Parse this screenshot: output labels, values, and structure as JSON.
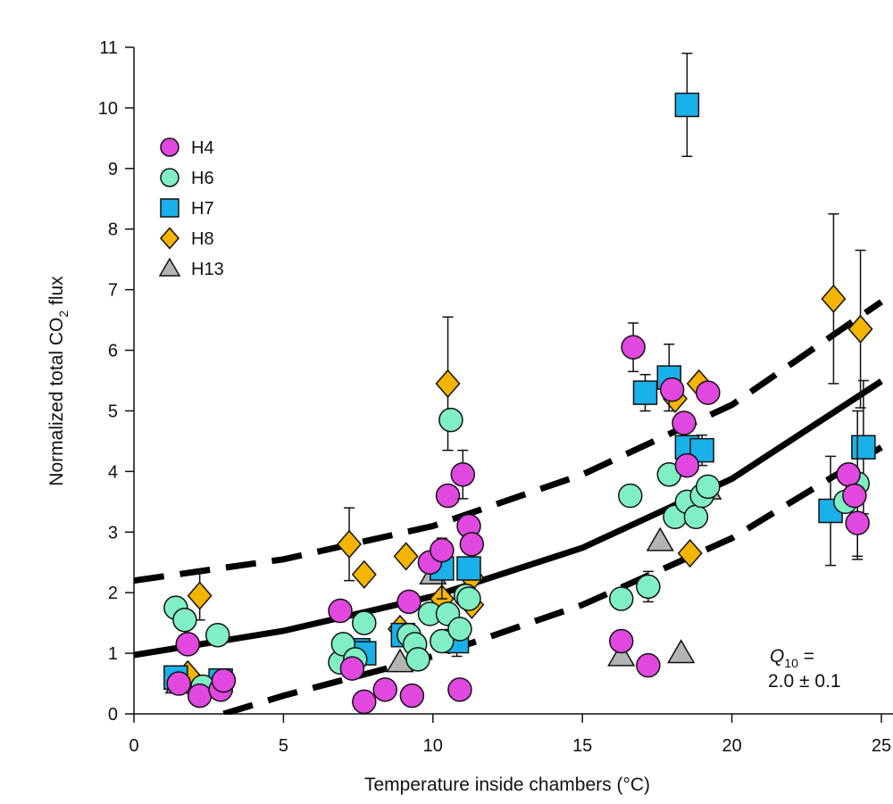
{
  "chart_data": {
    "type": "scatter",
    "x_label": "Temperature inside chambers (°C)",
    "y_label": {
      "text": "Normalized total CO",
      "sub": "2",
      "after": " flux"
    },
    "annotation": {
      "q": "Q",
      "sub": "10",
      "eq": " =",
      "value": "2.0 ± 0.1"
    },
    "xlim": [
      0,
      25
    ],
    "ylim": [
      0,
      11
    ],
    "xticks": [
      0,
      5,
      10,
      15,
      20,
      25
    ],
    "yticks": [
      0,
      1,
      2,
      3,
      4,
      5,
      6,
      7,
      8,
      9,
      10,
      11
    ],
    "legend": "top-left",
    "series": [
      {
        "name": "H4",
        "marker": "circle",
        "color": "#e048e0",
        "x": [
          1.5,
          1.8,
          2.2,
          2.9,
          3.0,
          6.9,
          7.3,
          7.7,
          8.4,
          9.2,
          9.3,
          9.9,
          10.3,
          10.5,
          10.9,
          11.0,
          11.2,
          11.3,
          16.3,
          16.7,
          17.2,
          18.0,
          18.4,
          18.5,
          19.2,
          23.9,
          24.2,
          24.1
        ],
        "values": [
          0.5,
          1.15,
          0.3,
          0.4,
          0.55,
          1.7,
          0.75,
          0.2,
          0.4,
          1.85,
          0.3,
          2.5,
          2.7,
          3.6,
          0.4,
          3.95,
          3.1,
          2.8,
          1.2,
          6.05,
          0.8,
          5.35,
          4.8,
          4.1,
          5.3,
          3.95,
          3.15,
          3.6
        ],
        "errors": [
          null,
          null,
          null,
          null,
          null,
          null,
          null,
          null,
          null,
          null,
          null,
          null,
          null,
          null,
          null,
          0.4,
          null,
          null,
          null,
          0.4,
          null,
          null,
          null,
          null,
          null,
          null,
          0.6,
          null
        ]
      },
      {
        "name": "H6",
        "marker": "circle",
        "color": "#80f0c4",
        "x": [
          1.4,
          1.7,
          2.3,
          2.8,
          6.9,
          7.0,
          7.4,
          7.7,
          9.2,
          9.4,
          9.5,
          9.9,
          10.3,
          10.5,
          10.6,
          10.9,
          11.1,
          11.2,
          16.3,
          16.6,
          17.2,
          17.9,
          18.1,
          18.5,
          18.8,
          19.0,
          19.2,
          23.8,
          24.2
        ],
        "values": [
          1.75,
          1.55,
          0.45,
          1.3,
          0.85,
          1.15,
          0.9,
          1.5,
          1.3,
          1.15,
          0.9,
          1.65,
          1.2,
          1.65,
          4.85,
          1.4,
          1.95,
          1.9,
          1.9,
          3.6,
          2.1,
          3.95,
          3.25,
          3.5,
          3.25,
          3.6,
          3.75,
          3.5,
          3.8
        ],
        "errors": [
          null,
          null,
          null,
          null,
          null,
          null,
          null,
          null,
          null,
          null,
          null,
          null,
          null,
          null,
          null,
          null,
          null,
          null,
          null,
          null,
          0.25,
          null,
          null,
          null,
          null,
          null,
          null,
          null,
          1.2
        ]
      },
      {
        "name": "H7",
        "marker": "square",
        "color": "#1ab0e8",
        "x": [
          1.4,
          2.9,
          7.5,
          7.7,
          9.0,
          10.3,
          10.8,
          11.2,
          17.1,
          17.9,
          18.5,
          18.5,
          19.0,
          23.3,
          24.4
        ],
        "values": [
          0.6,
          0.55,
          1.05,
          1.0,
          1.3,
          2.4,
          1.2,
          2.4,
          5.3,
          5.55,
          10.05,
          4.4,
          4.35,
          3.35,
          4.4
        ],
        "errors": [
          null,
          null,
          null,
          null,
          null,
          0.5,
          0.25,
          null,
          0.3,
          0.55,
          0.85,
          null,
          0.25,
          0.9,
          1.1
        ]
      },
      {
        "name": "H8",
        "marker": "diamond",
        "color": "#f5b400",
        "x": [
          2.2,
          1.8,
          7.2,
          7.7,
          9.1,
          8.9,
          10.5,
          10.3,
          11.3,
          11.3,
          18.1,
          18.9,
          18.6,
          23.4,
          24.3
        ],
        "values": [
          1.95,
          0.65,
          2.8,
          2.3,
          2.6,
          1.4,
          5.45,
          1.9,
          2.25,
          1.8,
          5.2,
          5.45,
          2.65,
          6.85,
          6.35
        ],
        "errors": [
          0.4,
          null,
          0.6,
          null,
          null,
          null,
          1.1,
          null,
          null,
          null,
          null,
          null,
          null,
          1.4,
          1.3
        ]
      },
      {
        "name": "H13",
        "marker": "triangle",
        "color": "#b4b4b4",
        "x": [
          1.5,
          8.9,
          10.0,
          16.3,
          17.6,
          18.3,
          19.2
        ],
        "values": [
          0.5,
          0.85,
          2.3,
          0.95,
          2.85,
          1.0,
          3.7
        ],
        "errors": [
          null,
          null,
          null,
          null,
          null,
          null,
          null
        ]
      }
    ],
    "fits": [
      {
        "style": "dashed",
        "x": [
          0,
          5,
          10,
          15,
          20,
          25
        ],
        "values": [
          2.2,
          2.55,
          3.1,
          3.95,
          5.1,
          6.8
        ]
      },
      {
        "style": "solid",
        "x": [
          0,
          5,
          10,
          15,
          20,
          25
        ],
        "values": [
          0.97,
          1.37,
          1.94,
          2.74,
          3.88,
          5.49
        ]
      },
      {
        "style": "dashed",
        "x": [
          3,
          5,
          10,
          15,
          20,
          25
        ],
        "values": [
          0,
          0.3,
          0.95,
          1.8,
          2.9,
          4.4
        ]
      }
    ]
  }
}
